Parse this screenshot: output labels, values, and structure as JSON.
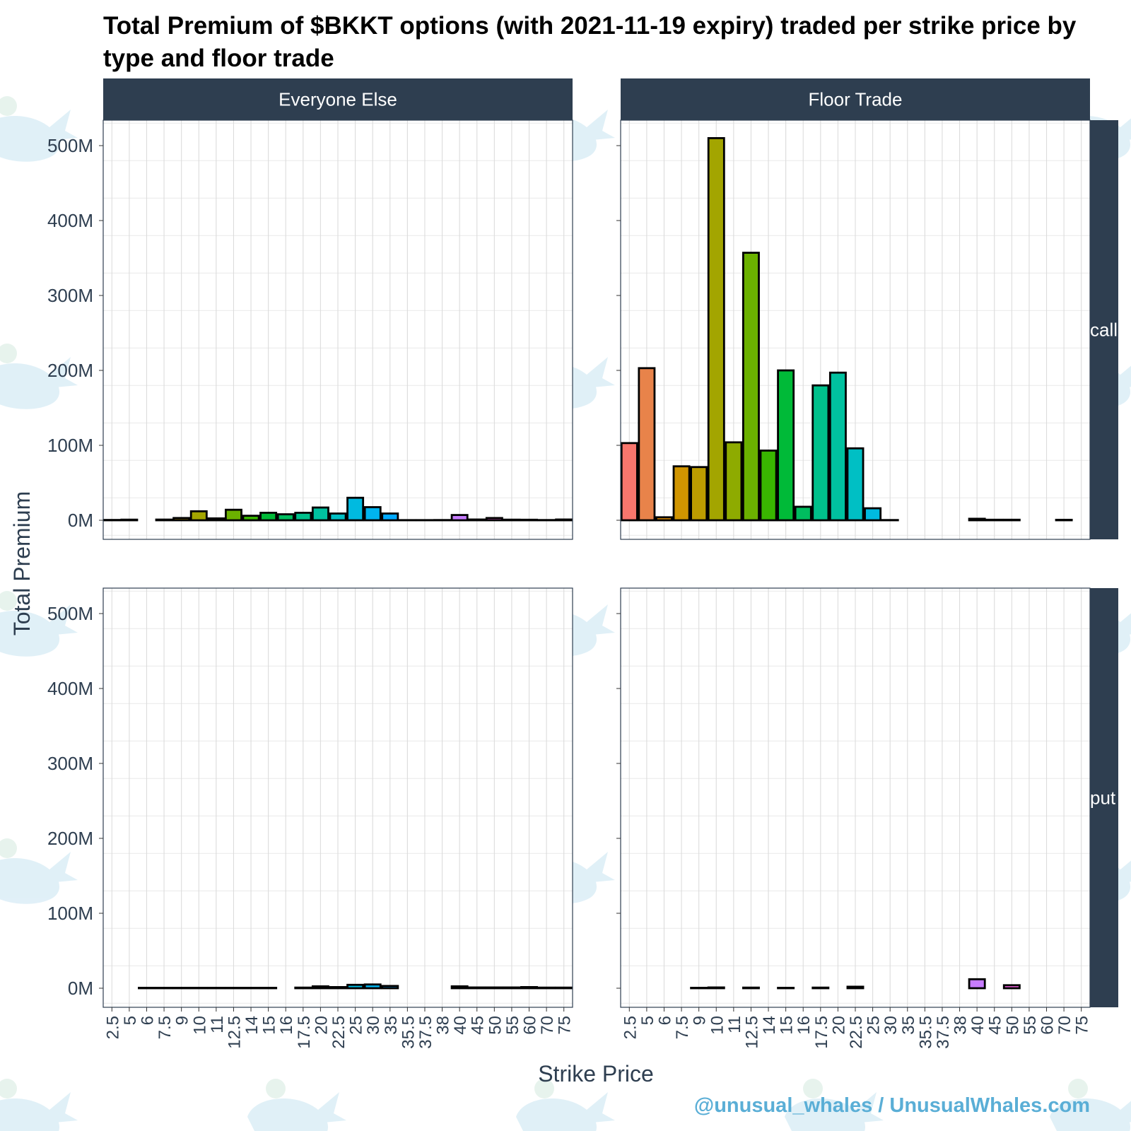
{
  "title": "Total Premium of $BKKT options (with 2021-11-19 expiry) traded per strike price by type and floor trade",
  "watermark": "@unusual_whales / UnusualWhales.com",
  "colors": {
    "strip_bg": "#2e3e50",
    "strip_text": "#ffffff",
    "grid": "#dcdcdc",
    "axis_text": "#2e3e50",
    "bar_outline": "#000000"
  },
  "chart_data": {
    "type": "bar",
    "facets": {
      "columns": [
        "Everyone Else",
        "Floor Trade"
      ],
      "rows": [
        "call",
        "put"
      ]
    },
    "xlabel": "Strike Price",
    "ylabel": "Total Premium",
    "ylim": [
      0,
      525000000
    ],
    "y_ticks": [
      0,
      100000000,
      200000000,
      300000000,
      400000000,
      500000000
    ],
    "y_tick_labels": [
      "0M",
      "100M",
      "200M",
      "300M",
      "400M",
      "500M"
    ],
    "x_categories": {
      "Everyone Else": [
        "2.5",
        "5",
        "6",
        "7.5",
        "9",
        "10",
        "11",
        "12.5",
        "14",
        "15",
        "16",
        "17.5",
        "20",
        "22.5",
        "25",
        "30",
        "35",
        "35.5",
        "37.5",
        "38",
        "40",
        "45",
        "50",
        "55",
        "60",
        "70",
        "75"
      ],
      "Floor Trade": [
        "2.5",
        "5",
        "6",
        "7.5",
        "9",
        "10",
        "11",
        "12.5",
        "14",
        "15",
        "16",
        "17.5",
        "20",
        "22.5",
        "25",
        "30",
        "35",
        "35.5",
        "37.5",
        "38",
        "40",
        "45",
        "50",
        "55",
        "60",
        "70",
        "75"
      ]
    },
    "strike_colors": {
      "2.5": "#f8766d",
      "5": "#e8834a",
      "6": "#e08b00",
      "7.5": "#d09400",
      "9": "#bd9c00",
      "10": "#a3a500",
      "11": "#8eab00",
      "12.5": "#6bb100",
      "14": "#39b600",
      "15": "#00ba38",
      "16": "#00bd5f",
      "17.5": "#00c08b",
      "20": "#00c19f",
      "22.5": "#00bfc4",
      "25": "#00bae0",
      "30": "#00b4ef",
      "35": "#00a9ff",
      "35.5": "#619cff",
      "37.5": "#8f91ff",
      "38": "#b07fff",
      "40": "#c77cff",
      "45": "#e76bf3",
      "50": "#f564e3",
      "55": "#fd61d1",
      "60": "#ff61c3",
      "70": "#ff67a4",
      "75": "#fe6e8a"
    },
    "panels": [
      {
        "column": "Everyone Else",
        "row": "call",
        "values": [
          400000,
          800000,
          0,
          900000,
          3000000,
          12000000,
          2500000,
          14000000,
          6000000,
          10000000,
          8000000,
          10000000,
          17000000,
          9000000,
          30000000,
          17500000,
          9000000,
          200000,
          200000,
          300000,
          7000000,
          1000000,
          3000000,
          800000,
          700000,
          300000,
          1000000
        ]
      },
      {
        "column": "Floor Trade",
        "row": "call",
        "values": [
          103000000,
          203000000,
          4000000,
          72000000,
          71000000,
          510000000,
          104000000,
          357000000,
          93000000,
          200000000,
          18000000,
          180000000,
          197000000,
          96000000,
          16000000,
          300000,
          0,
          0,
          0,
          0,
          2000000,
          700000,
          700000,
          0,
          0,
          600000,
          0
        ]
      },
      {
        "column": "Everyone Else",
        "row": "put",
        "values": [
          0,
          0,
          500000,
          500000,
          500000,
          500000,
          500000,
          500000,
          500000,
          500000,
          0,
          800000,
          2500000,
          1500000,
          4500000,
          5000000,
          3000000,
          0,
          0,
          0,
          2500000,
          1000000,
          1000000,
          1000000,
          1500000,
          800000,
          800000
        ]
      },
      {
        "column": "Floor Trade",
        "row": "put",
        "values": [
          0,
          0,
          0,
          0,
          500000,
          1000000,
          0,
          800000,
          0,
          500000,
          0,
          800000,
          0,
          2000000,
          0,
          0,
          0,
          0,
          0,
          0,
          12000000,
          0,
          4000000,
          0,
          0,
          0,
          0
        ]
      }
    ],
    "grid": true,
    "legend": "none"
  }
}
